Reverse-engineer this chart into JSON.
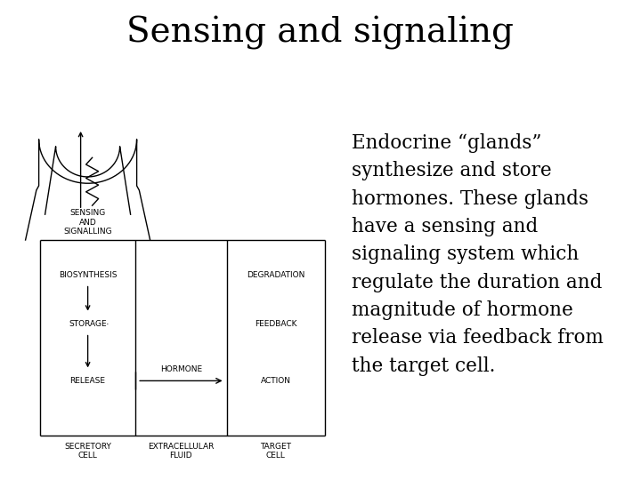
{
  "title": "Sensing and signaling",
  "title_fontsize": 28,
  "title_font": "serif",
  "bg_color": "#ffffff",
  "text_color": "#000000",
  "body_text": "Endocrine “glands”\nsynthesize and store\nhormones. These glands\nhave a sensing and\nsignaling system which\nregulate the duration and\nmagnitude of hormone\nrelease via feedback from\nthe target cell.",
  "body_fontsize": 15.5,
  "diagram_labels": {
    "sensing_and_signalling": "SENSING\nAND\nSIGNALLING",
    "biosynthesis": "BIOSYNTHESIS",
    "storage": "STORAGE",
    "release": "RELEASE",
    "degradation": "DEGRADATION",
    "feedback": "FEEDBACK",
    "hormone": "HORMONE",
    "action": "ACTION",
    "secretory_cell": "SECRETORY\nCELL",
    "extracellular_fluid": "EXTRACELLULAR\nFLUID",
    "target_cell": "TARGET\nCELL"
  },
  "label_fontsize": 6.5,
  "lw": 1.0
}
